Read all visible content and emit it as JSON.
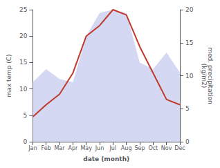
{
  "chart_data": {
    "type": "line",
    "xlabel": "date (month)",
    "ylabel": "max temp (C)",
    "y2label": "med. precipitation\n(kg/m2)",
    "categories": [
      "Jan",
      "Feb",
      "Mar",
      "Apr",
      "May",
      "Jun",
      "Jul",
      "Aug",
      "Sep",
      "Oct",
      "Nov",
      "Dec"
    ],
    "series": [
      {
        "type": "area",
        "axis": "y2",
        "color": "#b0b8e8",
        "values": [
          9.0,
          11.0,
          9.5,
          9.0,
          16.0,
          19.5,
          20.0,
          19.5,
          12.0,
          11.0,
          13.5,
          10.5
        ]
      },
      {
        "type": "line",
        "color": "#c0392b",
        "values": [
          4.7,
          7.0,
          9.0,
          13.0,
          20.0,
          22.0,
          25.0,
          24.0,
          18.0,
          13.0,
          8.0,
          7.0
        ]
      }
    ],
    "ylim": [
      0,
      25
    ],
    "yticks": [
      0,
      5,
      10,
      15,
      20,
      25
    ],
    "y2lim": [
      0,
      20
    ],
    "y2ticks": [
      0,
      5,
      10,
      15,
      20
    ],
    "grid": false
  }
}
